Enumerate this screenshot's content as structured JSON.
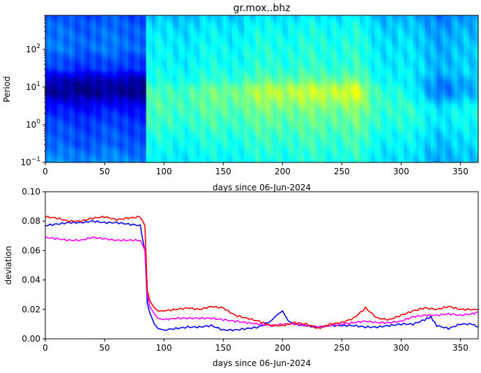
{
  "chart_data": [
    {
      "type": "heatmap",
      "title": "gr.mox..bhz",
      "xlabel": "days since 06-Jun-2024",
      "ylabel": "Period",
      "xlim": [
        0,
        365
      ],
      "ylim": [
        0.1,
        800
      ],
      "yscale": "log",
      "x_ticks": [
        "0",
        "50",
        "100",
        "150",
        "200",
        "250",
        "300",
        "350"
      ],
      "y_ticks": [
        {
          "value": 0.1,
          "base": "10",
          "exp": "−1"
        },
        {
          "value": 1,
          "base": "10",
          "exp": "0"
        },
        {
          "value": 10,
          "base": "10",
          "exp": "1"
        },
        {
          "value": 100,
          "base": "10",
          "exp": "2"
        }
      ],
      "colormap": [
        "#00007f",
        "#0000ff",
        "#007fff",
        "#00ffff",
        "#7fff7f",
        "#ffff00"
      ],
      "time_regions": [
        {
          "x0": 0,
          "x1": 85,
          "profile": "strong"
        },
        {
          "x0": 85,
          "x1": 365,
          "profile": "weak"
        }
      ],
      "time_modulation": [
        {
          "x": 0,
          "v": 0.0
        },
        {
          "x": 85,
          "v": 0.0
        },
        {
          "x": 100,
          "v": -0.02
        },
        {
          "x": 160,
          "v": 0.05
        },
        {
          "x": 195,
          "v": 0.12
        },
        {
          "x": 235,
          "v": 0.12
        },
        {
          "x": 262,
          "v": 0.16
        },
        {
          "x": 275,
          "v": 0.0
        },
        {
          "x": 300,
          "v": -0.05
        },
        {
          "x": 335,
          "v": -0.22
        },
        {
          "x": 365,
          "v": -0.15
        }
      ],
      "period_profiles": {
        "strong": [
          {
            "period": 0.1,
            "v": 0.42
          },
          {
            "period": 0.3,
            "v": 0.34
          },
          {
            "period": 1,
            "v": 0.3
          },
          {
            "period": 3,
            "v": 0.2
          },
          {
            "period": 7,
            "v": 0.02
          },
          {
            "period": 15,
            "v": 0.08
          },
          {
            "period": 30,
            "v": 0.28
          },
          {
            "period": 100,
            "v": 0.38
          },
          {
            "period": 800,
            "v": 0.32
          }
        ],
        "weak": [
          {
            "period": 0.1,
            "v": 0.58
          },
          {
            "period": 0.3,
            "v": 0.62
          },
          {
            "period": 1,
            "v": 0.68
          },
          {
            "period": 3,
            "v": 0.72
          },
          {
            "period": 8,
            "v": 0.72
          },
          {
            "period": 15,
            "v": 0.64
          },
          {
            "period": 40,
            "v": 0.6
          },
          {
            "period": 150,
            "v": 0.58
          },
          {
            "period": 800,
            "v": 0.5
          }
        ]
      }
    },
    {
      "type": "line",
      "xlabel": "days since 06-Jun-2024",
      "ylabel": "deviation",
      "xlim": [
        0,
        365
      ],
      "ylim": [
        0,
        0.1
      ],
      "x_ticks": [
        "0",
        "50",
        "100",
        "150",
        "200",
        "250",
        "300",
        "350"
      ],
      "y_ticks": [
        "0.00",
        "0.02",
        "0.04",
        "0.06",
        "0.08",
        "0.10"
      ],
      "series": [
        {
          "color": "#0000ff",
          "x": [
            0,
            10,
            20,
            30,
            40,
            50,
            60,
            70,
            80,
            84,
            86,
            88,
            92,
            95,
            100,
            110,
            120,
            130,
            140,
            150,
            160,
            170,
            180,
            190,
            195,
            200,
            205,
            210,
            220,
            230,
            240,
            250,
            260,
            270,
            280,
            290,
            300,
            310,
            320,
            325,
            330,
            340,
            350,
            360,
            365
          ],
          "y": [
            0.077,
            0.078,
            0.079,
            0.079,
            0.08,
            0.079,
            0.079,
            0.078,
            0.077,
            0.06,
            0.024,
            0.018,
            0.01,
            0.007,
            0.006,
            0.007,
            0.008,
            0.008,
            0.009,
            0.006,
            0.006,
            0.007,
            0.008,
            0.012,
            0.016,
            0.019,
            0.012,
            0.01,
            0.009,
            0.008,
            0.009,
            0.009,
            0.009,
            0.008,
            0.008,
            0.009,
            0.01,
            0.01,
            0.013,
            0.015,
            0.009,
            0.007,
            0.01,
            0.01,
            0.008
          ]
        },
        {
          "color": "#ff00ff",
          "x": [
            0,
            10,
            20,
            30,
            40,
            50,
            60,
            70,
            80,
            84,
            86,
            88,
            92,
            95,
            100,
            110,
            120,
            130,
            140,
            150,
            160,
            170,
            180,
            190,
            200,
            210,
            220,
            230,
            240,
            250,
            260,
            270,
            280,
            290,
            300,
            310,
            320,
            330,
            340,
            350,
            360,
            365
          ],
          "y": [
            0.069,
            0.068,
            0.067,
            0.067,
            0.069,
            0.068,
            0.067,
            0.067,
            0.067,
            0.06,
            0.03,
            0.022,
            0.017,
            0.014,
            0.013,
            0.014,
            0.014,
            0.014,
            0.014,
            0.013,
            0.012,
            0.011,
            0.01,
            0.009,
            0.01,
            0.01,
            0.009,
            0.008,
            0.009,
            0.01,
            0.011,
            0.012,
            0.011,
            0.011,
            0.012,
            0.015,
            0.016,
            0.016,
            0.017,
            0.016,
            0.017,
            0.018
          ]
        },
        {
          "color": "#ff0000",
          "x": [
            0,
            10,
            20,
            30,
            40,
            50,
            60,
            70,
            80,
            84,
            86,
            88,
            92,
            95,
            100,
            110,
            120,
            130,
            140,
            150,
            160,
            170,
            180,
            190,
            200,
            210,
            220,
            230,
            240,
            250,
            260,
            270,
            280,
            290,
            300,
            310,
            320,
            330,
            340,
            350,
            360,
            365
          ],
          "y": [
            0.083,
            0.082,
            0.08,
            0.08,
            0.082,
            0.083,
            0.081,
            0.082,
            0.083,
            0.077,
            0.033,
            0.026,
            0.021,
            0.019,
            0.019,
            0.02,
            0.021,
            0.02,
            0.022,
            0.021,
            0.016,
            0.014,
            0.012,
            0.009,
            0.009,
            0.011,
            0.01,
            0.007,
            0.01,
            0.011,
            0.014,
            0.021,
            0.014,
            0.013,
            0.016,
            0.019,
            0.021,
            0.02,
            0.022,
            0.02,
            0.02,
            0.02
          ]
        }
      ]
    }
  ]
}
